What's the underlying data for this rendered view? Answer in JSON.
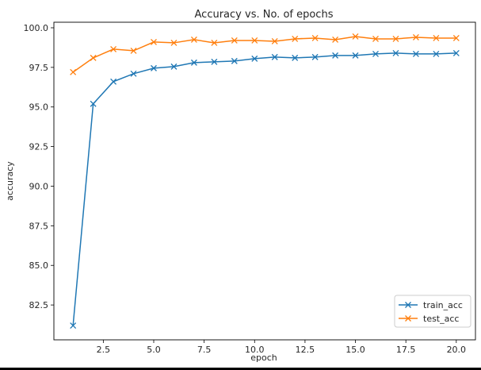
{
  "chart_data": {
    "type": "line",
    "title": "Accuracy vs. No. of epochs",
    "xlabel": "epoch",
    "ylabel": "accuracy",
    "xlim": [
      0.05,
      20.95
    ],
    "ylim": [
      80.3,
      100.35
    ],
    "xticks": [
      2.5,
      5.0,
      7.5,
      10.0,
      12.5,
      15.0,
      17.5,
      20.0
    ],
    "xtick_labels": [
      "2.5",
      "5.0",
      "7.5",
      "10.0",
      "12.5",
      "15.0",
      "17.5",
      "20.0"
    ],
    "yticks": [
      82.5,
      85.0,
      87.5,
      90.0,
      92.5,
      95.0,
      97.5,
      100.0
    ],
    "ytick_labels": [
      "82.5",
      "85.0",
      "87.5",
      "90.0",
      "92.5",
      "95.0",
      "97.5",
      "100.0"
    ],
    "x": [
      1,
      2,
      3,
      4,
      5,
      6,
      7,
      8,
      9,
      10,
      11,
      12,
      13,
      14,
      15,
      16,
      17,
      18,
      19,
      20
    ],
    "series": [
      {
        "name": "train_acc",
        "color": "#1f77b4",
        "marker": "x",
        "values": [
          81.2,
          95.2,
          96.6,
          97.1,
          97.45,
          97.55,
          97.8,
          97.85,
          97.9,
          98.05,
          98.15,
          98.1,
          98.15,
          98.25,
          98.25,
          98.35,
          98.4,
          98.35,
          98.35,
          98.4
        ]
      },
      {
        "name": "test_acc",
        "color": "#ff7f0e",
        "marker": "x",
        "values": [
          97.2,
          98.1,
          98.65,
          98.55,
          99.1,
          99.05,
          99.25,
          99.05,
          99.2,
          99.2,
          99.15,
          99.3,
          99.35,
          99.25,
          99.45,
          99.3,
          99.3,
          99.4,
          99.35,
          99.35
        ]
      }
    ],
    "legend_position": "lower-right",
    "grid": false
  }
}
